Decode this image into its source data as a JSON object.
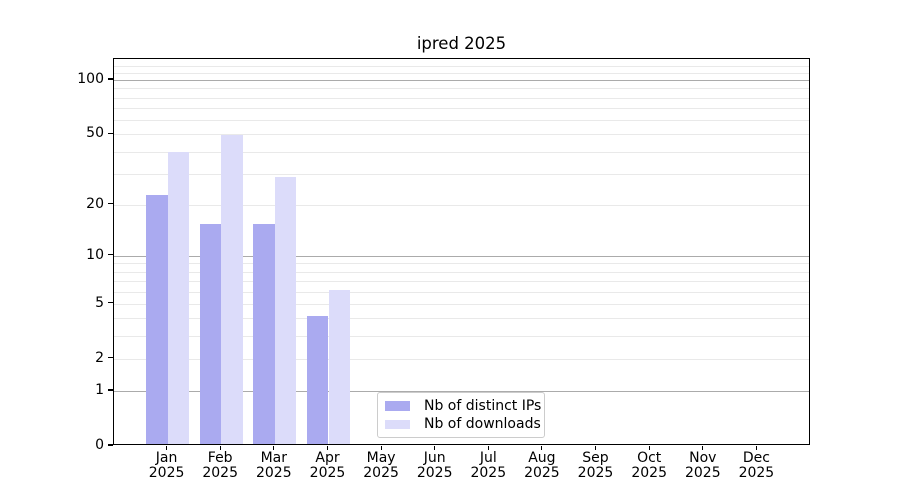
{
  "title": "ipred 2025",
  "legend": {
    "items": [
      {
        "label": "Nb of distinct IPs",
        "color": "#aaaaf0"
      },
      {
        "label": "Nb of downloads",
        "color": "#dcdcfa"
      }
    ]
  },
  "colors": {
    "bar_distinct_ips": "#aaaaf0",
    "bar_downloads": "#dcdcfa",
    "grid_major": "#ababab",
    "grid_minor": "#e9e9e9",
    "axis": "#000000",
    "legend_border": "#cccccc",
    "background": "#ffffff"
  },
  "chart_data": {
    "type": "bar",
    "title": "ipred 2025",
    "categories": [
      "Jan",
      "Feb",
      "Mar",
      "Apr",
      "May",
      "Jun",
      "Jul",
      "Aug",
      "Sep",
      "Oct",
      "Nov",
      "Dec"
    ],
    "year_label": "2025",
    "series": [
      {
        "name": "Nb of distinct IPs",
        "color": "#aaaaf0",
        "values": [
          22,
          15,
          15,
          4,
          null,
          null,
          null,
          null,
          null,
          null,
          null,
          null
        ]
      },
      {
        "name": "Nb of downloads",
        "color": "#dcdcfa",
        "values": [
          39,
          48,
          28,
          6,
          null,
          null,
          null,
          null,
          null,
          null,
          null,
          null
        ]
      }
    ],
    "xlabel": "",
    "ylabel": "",
    "yscale": "log10(1+v)",
    "ylim": [
      0,
      130
    ],
    "yticks": [
      0,
      1,
      2,
      5,
      10,
      20,
      50,
      100
    ],
    "grid": {
      "major_values": [
        1,
        10,
        100
      ],
      "minor_values": [
        2,
        3,
        4,
        5,
        6,
        7,
        8,
        9,
        20,
        30,
        40,
        50,
        60,
        70,
        80,
        90,
        110,
        120
      ]
    },
    "legend_position": "lower center-left inside plot"
  }
}
